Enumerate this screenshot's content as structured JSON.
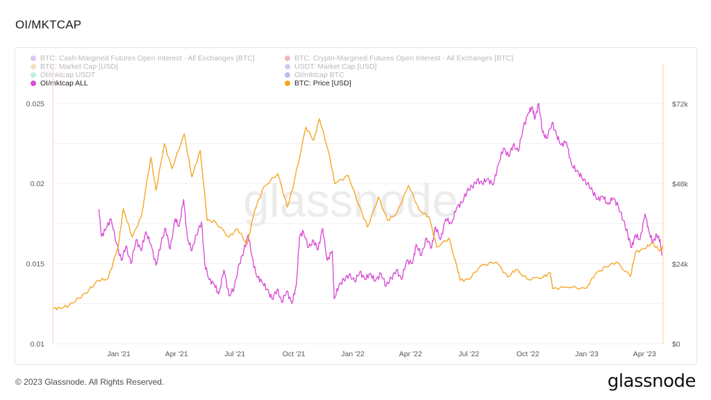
{
  "page": {
    "title": "OI/MKTCAP",
    "copyright": "© 2023 Glassnode. All Rights Reserved.",
    "logo_text": "glassnode",
    "watermark": "glassnode"
  },
  "legend": [
    {
      "label": "BTC: Cash-Margined Futures Open Interest - All Exchanges [BTC]",
      "color": "#9b4fd6",
      "active": false
    },
    {
      "label": "BTC: Crypto-Margined Futures Open Interest - All Exchanges [BTC]",
      "color": "#d62f2f",
      "active": false
    },
    {
      "label": "BTC: Market Cap [USD]",
      "color": "#d9a23a",
      "active": false
    },
    {
      "label": "USDT: Market Cap [USD]",
      "color": "#6a6adf",
      "active": false
    },
    {
      "label": "OI/mktcap USDT",
      "color": "#33d1a0",
      "active": false
    },
    {
      "label": "OI/mktcap BTC",
      "color": "#2e3fd6",
      "active": false
    },
    {
      "label": "OI/mktcap ALL",
      "color": "#d94fd6",
      "active": true
    },
    {
      "label": "BTC: Price [USD]",
      "color": "#f5a623",
      "active": true
    }
  ],
  "chart_data": {
    "type": "line",
    "x_tick_labels": [
      "Jan '21",
      "Apr '21",
      "Jul '21",
      "Oct '21",
      "Jan '22",
      "Apr '22",
      "Jul '22",
      "Oct '22",
      "Jan '23",
      "Apr '23"
    ],
    "x_tick_dates": [
      "2021-01-01",
      "2021-04-01",
      "2021-07-01",
      "2021-10-01",
      "2022-01-01",
      "2022-04-01",
      "2022-07-01",
      "2022-10-01",
      "2023-01-01",
      "2023-04-01"
    ],
    "x_range": [
      "2020-09-20",
      "2023-04-30"
    ],
    "left_axis": {
      "ticks": [
        0.01,
        0.015,
        0.02,
        0.025
      ],
      "tick_labels": [
        "0.01",
        "0.015",
        "0.02",
        "0.025"
      ],
      "range": [
        0.01,
        0.0256
      ]
    },
    "right_axis": {
      "ticks": [
        0,
        24000,
        48000,
        72000
      ],
      "tick_labels": [
        "$0",
        "$24k",
        "$48k",
        "$72k"
      ],
      "range": [
        0,
        75000
      ]
    },
    "grid": true,
    "series": [
      {
        "name": "OI/mktcap ALL",
        "color": "#d94fd6",
        "axis": "left",
        "points": [
          [
            "2020-12-01",
            0.0184
          ],
          [
            "2020-12-05",
            0.0167
          ],
          [
            "2020-12-12",
            0.0172
          ],
          [
            "2020-12-20",
            0.0178
          ],
          [
            "2020-12-28",
            0.0163
          ],
          [
            "2021-01-05",
            0.0152
          ],
          [
            "2021-01-12",
            0.0161
          ],
          [
            "2021-01-20",
            0.015
          ],
          [
            "2021-01-28",
            0.0165
          ],
          [
            "2021-02-05",
            0.0158
          ],
          [
            "2021-02-12",
            0.017
          ],
          [
            "2021-02-20",
            0.0162
          ],
          [
            "2021-02-28",
            0.0149
          ],
          [
            "2021-03-08",
            0.0163
          ],
          [
            "2021-03-15",
            0.0172
          ],
          [
            "2021-03-22",
            0.0159
          ],
          [
            "2021-03-30",
            0.0178
          ],
          [
            "2021-04-05",
            0.0173
          ],
          [
            "2021-04-12",
            0.019
          ],
          [
            "2021-04-18",
            0.0166
          ],
          [
            "2021-04-25",
            0.0158
          ],
          [
            "2021-05-02",
            0.0168
          ],
          [
            "2021-05-10",
            0.0176
          ],
          [
            "2021-05-15",
            0.015
          ],
          [
            "2021-05-22",
            0.014
          ],
          [
            "2021-05-30",
            0.0137
          ],
          [
            "2021-06-06",
            0.0131
          ],
          [
            "2021-06-14",
            0.0146
          ],
          [
            "2021-06-22",
            0.013
          ],
          [
            "2021-06-30",
            0.0135
          ],
          [
            "2021-07-08",
            0.015
          ],
          [
            "2021-07-15",
            0.0158
          ],
          [
            "2021-07-22",
            0.0168
          ],
          [
            "2021-07-28",
            0.0154
          ],
          [
            "2021-08-04",
            0.0142
          ],
          [
            "2021-08-12",
            0.0139
          ],
          [
            "2021-08-20",
            0.0134
          ],
          [
            "2021-08-28",
            0.0128
          ],
          [
            "2021-09-05",
            0.0134
          ],
          [
            "2021-09-12",
            0.0126
          ],
          [
            "2021-09-20",
            0.0133
          ],
          [
            "2021-09-28",
            0.0125
          ],
          [
            "2021-10-05",
            0.0137
          ],
          [
            "2021-10-10",
            0.0167
          ],
          [
            "2021-10-16",
            0.017
          ],
          [
            "2021-10-24",
            0.016
          ],
          [
            "2021-11-01",
            0.0164
          ],
          [
            "2021-11-08",
            0.0159
          ],
          [
            "2021-11-15",
            0.0172
          ],
          [
            "2021-11-22",
            0.0152
          ],
          [
            "2021-11-30",
            0.0158
          ],
          [
            "2021-12-03",
            0.0128
          ],
          [
            "2021-12-10",
            0.0136
          ],
          [
            "2021-12-18",
            0.014
          ],
          [
            "2021-12-26",
            0.0143
          ],
          [
            "2022-01-04",
            0.0139
          ],
          [
            "2022-01-12",
            0.0145
          ],
          [
            "2022-01-20",
            0.014
          ],
          [
            "2022-01-28",
            0.0144
          ],
          [
            "2022-02-05",
            0.0139
          ],
          [
            "2022-02-14",
            0.0144
          ],
          [
            "2022-02-22",
            0.0136
          ],
          [
            "2022-03-02",
            0.0141
          ],
          [
            "2022-03-10",
            0.0146
          ],
          [
            "2022-03-18",
            0.014
          ],
          [
            "2022-03-26",
            0.0152
          ],
          [
            "2022-04-04",
            0.015
          ],
          [
            "2022-04-10",
            0.0162
          ],
          [
            "2022-04-18",
            0.0155
          ],
          [
            "2022-04-26",
            0.0166
          ],
          [
            "2022-05-04",
            0.016
          ],
          [
            "2022-05-10",
            0.0173
          ],
          [
            "2022-05-18",
            0.0165
          ],
          [
            "2022-05-26",
            0.0178
          ],
          [
            "2022-06-04",
            0.0175
          ],
          [
            "2022-06-12",
            0.0185
          ],
          [
            "2022-06-20",
            0.0188
          ],
          [
            "2022-06-28",
            0.0195
          ],
          [
            "2022-07-06",
            0.0198
          ],
          [
            "2022-07-14",
            0.0202
          ],
          [
            "2022-07-22",
            0.02
          ],
          [
            "2022-07-30",
            0.0203
          ],
          [
            "2022-08-08",
            0.0199
          ],
          [
            "2022-08-16",
            0.0212
          ],
          [
            "2022-08-24",
            0.0222
          ],
          [
            "2022-09-01",
            0.0217
          ],
          [
            "2022-09-08",
            0.0224
          ],
          [
            "2022-09-16",
            0.022
          ],
          [
            "2022-09-24",
            0.0235
          ],
          [
            "2022-10-02",
            0.0244
          ],
          [
            "2022-10-08",
            0.0248
          ],
          [
            "2022-10-12",
            0.024
          ],
          [
            "2022-10-18",
            0.025
          ],
          [
            "2022-10-24",
            0.0232
          ],
          [
            "2022-10-30",
            0.0228
          ],
          [
            "2022-11-08",
            0.0238
          ],
          [
            "2022-11-15",
            0.023
          ],
          [
            "2022-11-22",
            0.0224
          ],
          [
            "2022-11-30",
            0.0226
          ],
          [
            "2022-12-08",
            0.0212
          ],
          [
            "2022-12-16",
            0.0208
          ],
          [
            "2022-12-24",
            0.0204
          ],
          [
            "2023-01-02",
            0.02
          ],
          [
            "2023-01-10",
            0.0195
          ],
          [
            "2023-01-18",
            0.019
          ],
          [
            "2023-01-26",
            0.0192
          ],
          [
            "2023-02-03",
            0.0187
          ],
          [
            "2023-02-11",
            0.0191
          ],
          [
            "2023-02-19",
            0.0186
          ],
          [
            "2023-02-27",
            0.0177
          ],
          [
            "2023-03-06",
            0.0168
          ],
          [
            "2023-03-12",
            0.016
          ],
          [
            "2023-03-18",
            0.0168
          ],
          [
            "2023-03-25",
            0.0165
          ],
          [
            "2023-04-02",
            0.0181
          ],
          [
            "2023-04-08",
            0.017
          ],
          [
            "2023-04-14",
            0.0163
          ],
          [
            "2023-04-20",
            0.0168
          ],
          [
            "2023-04-25",
            0.0165
          ],
          [
            "2023-04-28",
            0.0155
          ]
        ]
      },
      {
        "name": "BTC: Price [USD]",
        "color": "#f5a623",
        "axis": "right",
        "points": [
          [
            "2020-09-20",
            10500
          ],
          [
            "2020-10-01",
            10700
          ],
          [
            "2020-10-15",
            11400
          ],
          [
            "2020-10-31",
            13700
          ],
          [
            "2020-11-15",
            16000
          ],
          [
            "2020-11-30",
            19000
          ],
          [
            "2020-12-15",
            19500
          ],
          [
            "2020-12-31",
            29000
          ],
          [
            "2021-01-08",
            40500
          ],
          [
            "2021-01-22",
            32000
          ],
          [
            "2021-02-05",
            38000
          ],
          [
            "2021-02-20",
            56000
          ],
          [
            "2021-02-28",
            46000
          ],
          [
            "2021-03-13",
            60000
          ],
          [
            "2021-03-25",
            52500
          ],
          [
            "2021-04-13",
            63000
          ],
          [
            "2021-04-25",
            50000
          ],
          [
            "2021-05-08",
            58000
          ],
          [
            "2021-05-19",
            37000
          ],
          [
            "2021-06-01",
            36500
          ],
          [
            "2021-06-22",
            32000
          ],
          [
            "2021-07-05",
            34500
          ],
          [
            "2021-07-20",
            29800
          ],
          [
            "2021-08-01",
            40000
          ],
          [
            "2021-08-15",
            47000
          ],
          [
            "2021-09-06",
            51000
          ],
          [
            "2021-09-21",
            41000
          ],
          [
            "2021-10-01",
            48000
          ],
          [
            "2021-10-20",
            65000
          ],
          [
            "2021-11-01",
            61000
          ],
          [
            "2021-11-10",
            67500
          ],
          [
            "2021-11-25",
            57000
          ],
          [
            "2021-12-04",
            48000
          ],
          [
            "2021-12-25",
            50500
          ],
          [
            "2022-01-10",
            41800
          ],
          [
            "2022-01-24",
            35000
          ],
          [
            "2022-02-10",
            44000
          ],
          [
            "2022-02-24",
            37000
          ],
          [
            "2022-03-10",
            39000
          ],
          [
            "2022-03-29",
            47500
          ],
          [
            "2022-04-15",
            40000
          ],
          [
            "2022-04-30",
            38000
          ],
          [
            "2022-05-12",
            29000
          ],
          [
            "2022-05-31",
            31700
          ],
          [
            "2022-06-13",
            22500
          ],
          [
            "2022-06-18",
            19000
          ],
          [
            "2022-07-01",
            19300
          ],
          [
            "2022-07-20",
            23500
          ],
          [
            "2022-08-13",
            24500
          ],
          [
            "2022-08-31",
            20000
          ],
          [
            "2022-09-12",
            22300
          ],
          [
            "2022-09-30",
            19400
          ],
          [
            "2022-10-25",
            20000
          ],
          [
            "2022-11-05",
            21300
          ],
          [
            "2022-11-09",
            16500
          ],
          [
            "2022-11-30",
            17000
          ],
          [
            "2022-12-31",
            16600
          ],
          [
            "2023-01-14",
            20900
          ],
          [
            "2023-01-31",
            23100
          ],
          [
            "2023-02-16",
            24500
          ],
          [
            "2023-03-10",
            20200
          ],
          [
            "2023-03-18",
            27500
          ],
          [
            "2023-04-01",
            28500
          ],
          [
            "2023-04-13",
            30300
          ],
          [
            "2023-04-25",
            27800
          ],
          [
            "2023-04-30",
            29300
          ]
        ]
      }
    ]
  }
}
